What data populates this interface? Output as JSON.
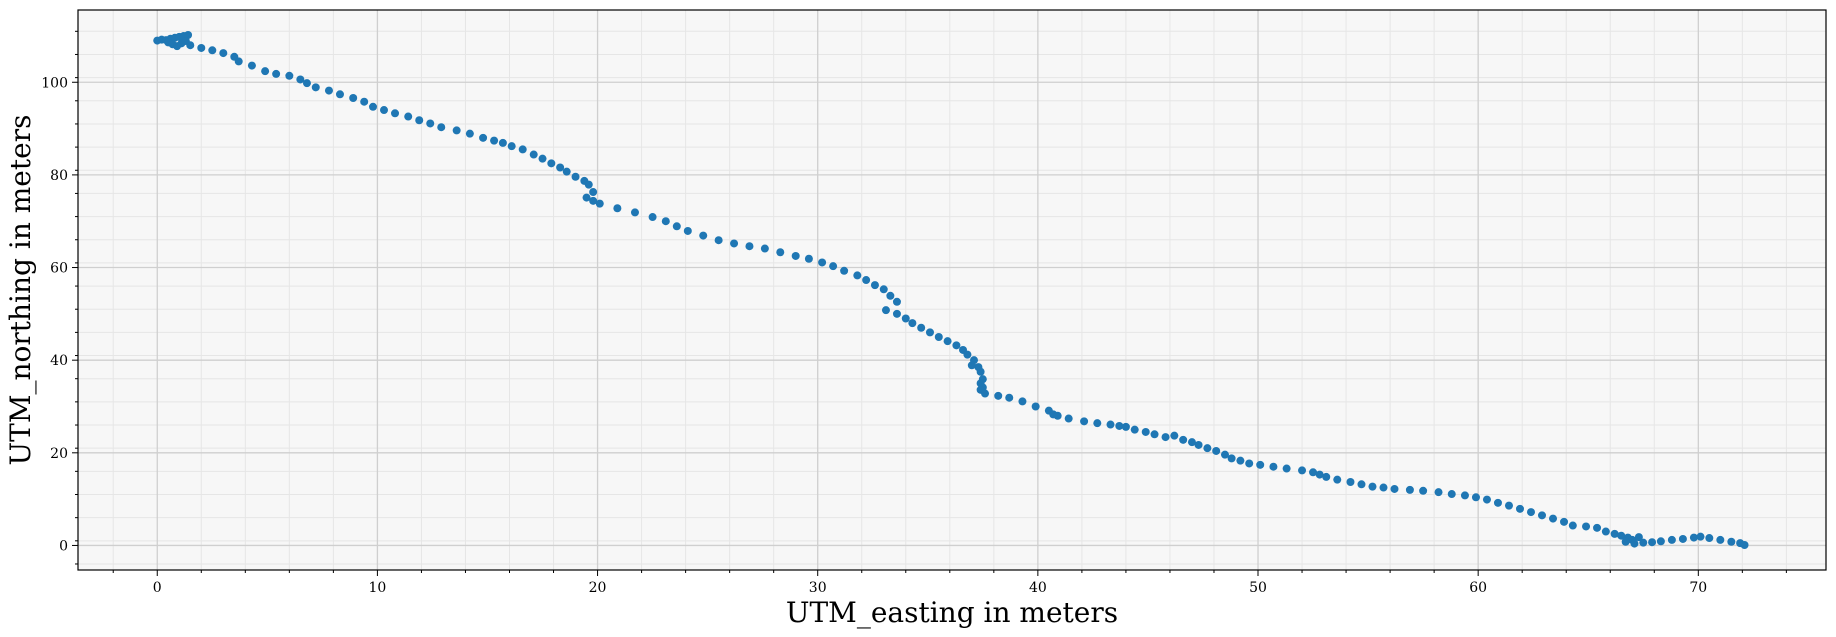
{
  "chart_data": {
    "type": "scatter",
    "title": "",
    "xlabel": "UTM_easting in meters",
    "ylabel": "UTM_northing in meters",
    "xlim": [
      -3.6,
      75.8
    ],
    "ylim": [
      -5.3,
      115.6
    ],
    "xticks": [
      0,
      10,
      20,
      30,
      40,
      50,
      60,
      70
    ],
    "yticks": [
      0,
      20,
      40,
      60,
      80,
      100
    ],
    "xtick_labels": [
      "0",
      "10",
      "20",
      "30",
      "40",
      "50",
      "60",
      "70"
    ],
    "ytick_labels": [
      "0",
      "20",
      "40",
      "60",
      "80",
      "100"
    ],
    "grid": true,
    "minor_grid": true,
    "colors": {
      "points": "#1f77b4",
      "plot_background": "#f7f7f7",
      "grid_major": "#cfcfcf",
      "grid_minor": "#e6e6e6"
    },
    "series": [
      {
        "points": [
          [
            0.0,
            109.0
          ],
          [
            0.2,
            109.2
          ],
          [
            0.4,
            109.1
          ],
          [
            0.6,
            109.4
          ],
          [
            0.8,
            109.6
          ],
          [
            1.0,
            109.8
          ],
          [
            1.2,
            110.0
          ],
          [
            1.4,
            110.2
          ],
          [
            0.5,
            108.6
          ],
          [
            0.7,
            108.2
          ],
          [
            0.9,
            107.8
          ],
          [
            1.1,
            108.4
          ],
          [
            1.3,
            108.9
          ],
          [
            1.5,
            108.0
          ],
          [
            2.0,
            107.4
          ],
          [
            2.5,
            106.9
          ],
          [
            3.0,
            106.3
          ],
          [
            3.5,
            105.5
          ],
          [
            3.7,
            104.5
          ],
          [
            4.3,
            103.6
          ],
          [
            4.9,
            102.4
          ],
          [
            5.4,
            101.8
          ],
          [
            6.0,
            101.4
          ],
          [
            6.5,
            100.6
          ],
          [
            6.8,
            99.8
          ],
          [
            7.2,
            98.9
          ],
          [
            7.8,
            98.2
          ],
          [
            8.3,
            97.4
          ],
          [
            8.9,
            96.6
          ],
          [
            9.4,
            95.8
          ],
          [
            9.8,
            94.7
          ],
          [
            10.3,
            94.0
          ],
          [
            10.8,
            93.3
          ],
          [
            11.4,
            92.6
          ],
          [
            11.9,
            91.8
          ],
          [
            12.4,
            91.1
          ],
          [
            12.9,
            90.3
          ],
          [
            13.6,
            89.6
          ],
          [
            14.2,
            88.9
          ],
          [
            14.8,
            88.0
          ],
          [
            15.3,
            87.4
          ],
          [
            15.7,
            86.9
          ],
          [
            16.1,
            86.2
          ],
          [
            16.6,
            85.5
          ],
          [
            17.1,
            84.4
          ],
          [
            17.5,
            83.5
          ],
          [
            17.9,
            82.5
          ],
          [
            18.3,
            81.6
          ],
          [
            18.6,
            80.7
          ],
          [
            19.0,
            79.6
          ],
          [
            19.4,
            78.7
          ],
          [
            19.6,
            77.9
          ],
          [
            19.8,
            76.3
          ],
          [
            19.5,
            75.1
          ],
          [
            19.8,
            74.4
          ],
          [
            20.1,
            73.8
          ],
          [
            20.9,
            72.8
          ],
          [
            21.7,
            71.9
          ],
          [
            22.5,
            70.9
          ],
          [
            23.1,
            70.0
          ],
          [
            23.6,
            68.9
          ],
          [
            24.1,
            67.9
          ],
          [
            24.8,
            66.9
          ],
          [
            25.5,
            65.9
          ],
          [
            26.2,
            65.2
          ],
          [
            26.9,
            64.6
          ],
          [
            27.6,
            64.1
          ],
          [
            28.3,
            63.3
          ],
          [
            29.0,
            62.5
          ],
          [
            29.6,
            61.9
          ],
          [
            30.2,
            61.1
          ],
          [
            30.7,
            60.3
          ],
          [
            31.2,
            59.3
          ],
          [
            31.8,
            58.3
          ],
          [
            32.2,
            57.3
          ],
          [
            32.6,
            56.2
          ],
          [
            33.0,
            55.3
          ],
          [
            33.3,
            53.9
          ],
          [
            33.6,
            52.6
          ],
          [
            33.1,
            50.8
          ],
          [
            33.6,
            50.0
          ],
          [
            34.0,
            49.0
          ],
          [
            34.3,
            48.0
          ],
          [
            34.7,
            47.0
          ],
          [
            35.1,
            46.0
          ],
          [
            35.5,
            45.0
          ],
          [
            35.9,
            44.1
          ],
          [
            36.3,
            43.2
          ],
          [
            36.6,
            42.2
          ],
          [
            36.8,
            41.2
          ],
          [
            37.1,
            40.0
          ],
          [
            37.3,
            38.5
          ],
          [
            37.0,
            38.9
          ],
          [
            37.4,
            37.5
          ],
          [
            37.5,
            35.9
          ],
          [
            37.4,
            35.0
          ],
          [
            37.5,
            34.1
          ],
          [
            37.4,
            33.6
          ],
          [
            37.6,
            32.8
          ],
          [
            38.2,
            32.3
          ],
          [
            38.7,
            31.9
          ],
          [
            39.3,
            31.1
          ],
          [
            39.9,
            30.0
          ],
          [
            40.5,
            29.1
          ],
          [
            40.7,
            28.3
          ],
          [
            40.9,
            28.0
          ],
          [
            41.4,
            27.4
          ],
          [
            42.1,
            26.8
          ],
          [
            42.7,
            26.4
          ],
          [
            43.3,
            26.1
          ],
          [
            43.7,
            25.8
          ],
          [
            44.0,
            25.6
          ],
          [
            44.4,
            25.0
          ],
          [
            44.9,
            24.5
          ],
          [
            45.3,
            24.0
          ],
          [
            45.8,
            23.4
          ],
          [
            46.2,
            23.7
          ],
          [
            46.6,
            22.8
          ],
          [
            47.0,
            22.3
          ],
          [
            47.3,
            21.7
          ],
          [
            47.7,
            21.0
          ],
          [
            48.1,
            20.4
          ],
          [
            48.5,
            19.6
          ],
          [
            48.8,
            18.8
          ],
          [
            49.2,
            18.3
          ],
          [
            49.6,
            17.7
          ],
          [
            50.1,
            17.4
          ],
          [
            50.7,
            17.0
          ],
          [
            51.3,
            16.6
          ],
          [
            52.0,
            16.2
          ],
          [
            52.5,
            15.8
          ],
          [
            52.8,
            15.3
          ],
          [
            53.1,
            14.8
          ],
          [
            53.6,
            14.2
          ],
          [
            54.2,
            13.7
          ],
          [
            54.7,
            13.2
          ],
          [
            55.2,
            12.7
          ],
          [
            55.7,
            12.5
          ],
          [
            56.2,
            12.2
          ],
          [
            56.9,
            12.0
          ],
          [
            57.5,
            11.8
          ],
          [
            58.2,
            11.5
          ],
          [
            58.8,
            11.1
          ],
          [
            59.4,
            10.8
          ],
          [
            59.9,
            10.4
          ],
          [
            60.4,
            9.9
          ],
          [
            60.9,
            9.2
          ],
          [
            61.4,
            8.6
          ],
          [
            61.9,
            7.9
          ],
          [
            62.4,
            7.2
          ],
          [
            62.9,
            6.5
          ],
          [
            63.4,
            5.8
          ],
          [
            63.9,
            5.1
          ],
          [
            64.3,
            4.3
          ],
          [
            64.9,
            4.1
          ],
          [
            65.4,
            3.8
          ],
          [
            65.8,
            3.0
          ],
          [
            66.2,
            2.5
          ],
          [
            66.5,
            2.1
          ],
          [
            66.8,
            1.7
          ],
          [
            67.0,
            1.2
          ],
          [
            66.7,
            0.8
          ],
          [
            67.1,
            0.4
          ],
          [
            67.5,
            0.6
          ],
          [
            67.9,
            0.7
          ],
          [
            68.3,
            0.9
          ],
          [
            67.3,
            1.8
          ],
          [
            68.8,
            1.2
          ],
          [
            69.3,
            1.4
          ],
          [
            69.8,
            1.7
          ],
          [
            70.1,
            1.9
          ],
          [
            70.5,
            1.6
          ],
          [
            71.0,
            1.2
          ],
          [
            71.5,
            0.8
          ],
          [
            71.9,
            0.5
          ],
          [
            72.1,
            0.1
          ]
        ]
      }
    ]
  }
}
